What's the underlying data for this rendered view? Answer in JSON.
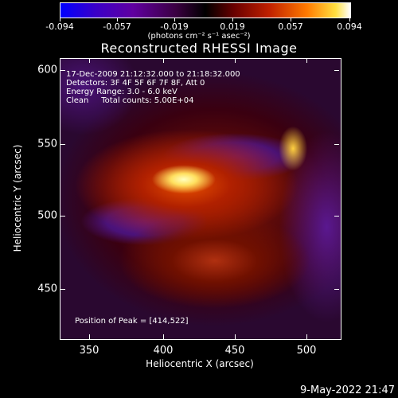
{
  "colorbar": {
    "ticks": [
      "-0.094",
      "-0.057",
      "-0.019",
      "0.019",
      "0.057",
      "0.094"
    ],
    "units": "(photons cm⁻² s⁻¹ asec⁻²)"
  },
  "title": "Reconstructed RHESSI Image",
  "info": {
    "line1": "17-Dec-2009 21:12:32.000 to 21:18:32.000",
    "line2": "Detectors: 3F 4F 5F 6F 7F 8F, Att 0",
    "line3": "Energy Range: 3.0 - 6.0 keV",
    "line4": "Clean     Total counts: 5.00E+04"
  },
  "peak": "Position of Peak = [414,522]",
  "axes": {
    "xlabel": "Heliocentric X (arcsec)",
    "ylabel": "Heliocentric Y (arcsec)",
    "xticks": [
      "350",
      "400",
      "450",
      "500"
    ],
    "yticks": [
      "600",
      "550",
      "500",
      "450"
    ]
  },
  "timestamp": "9-May-2022 21:47"
}
